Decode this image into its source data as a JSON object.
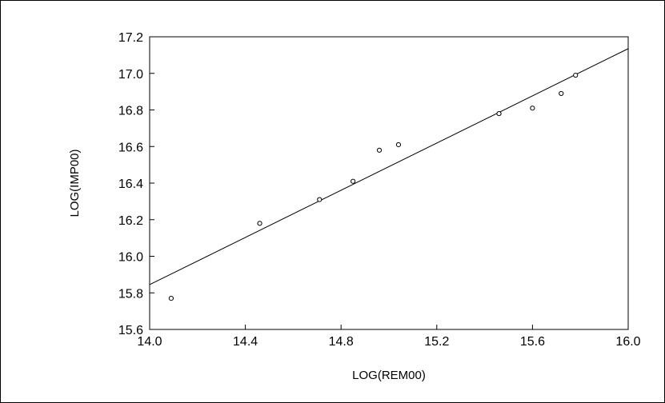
{
  "chart_data": {
    "type": "scatter",
    "title": "",
    "xlabel": "LOG(REM00)",
    "ylabel": "LOG(IMP00)",
    "xlim": [
      14.0,
      16.0
    ],
    "ylim": [
      15.6,
      17.2
    ],
    "xticks": [
      "14.0",
      "14.4",
      "14.8",
      "15.2",
      "15.6",
      "16.0"
    ],
    "yticks": [
      "15.6",
      "15.8",
      "16.0",
      "16.2",
      "16.4",
      "16.6",
      "16.8",
      "17.0",
      "17.2"
    ],
    "grid": false,
    "marker": "hollow-circle",
    "points": [
      {
        "x": 14.09,
        "y": 15.77
      },
      {
        "x": 14.46,
        "y": 16.18
      },
      {
        "x": 14.71,
        "y": 16.31
      },
      {
        "x": 14.85,
        "y": 16.41
      },
      {
        "x": 14.96,
        "y": 16.58
      },
      {
        "x": 15.04,
        "y": 16.61
      },
      {
        "x": 15.46,
        "y": 16.78
      },
      {
        "x": 15.6,
        "y": 16.81
      },
      {
        "x": 15.72,
        "y": 16.89
      },
      {
        "x": 15.78,
        "y": 16.99
      }
    ],
    "fit_line": {
      "x": [
        14.0,
        16.0
      ],
      "y": [
        15.845,
        17.135
      ]
    },
    "colors": {
      "axis": "#000000",
      "marker": "#000000",
      "line": "#000000"
    }
  }
}
